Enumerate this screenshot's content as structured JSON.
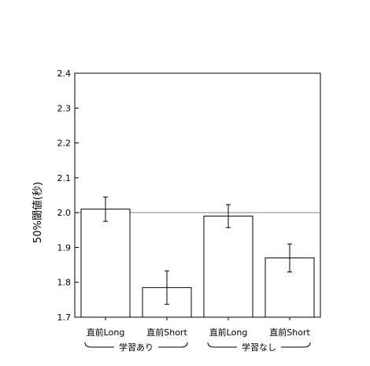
{
  "chart_data": {
    "type": "bar",
    "categories": [
      "直前Long",
      "直前Short",
      "直前Long",
      "直前Short"
    ],
    "values": [
      2.01,
      1.785,
      1.99,
      1.87
    ],
    "errors": [
      0.035,
      0.048,
      0.033,
      0.04
    ],
    "groups": [
      {
        "label": "学習あり",
        "categories": [
          0,
          1
        ]
      },
      {
        "label": "学習なし",
        "categories": [
          2,
          3
        ]
      }
    ],
    "ylabel": "50%閾値(秒)",
    "ylim": [
      1.7,
      2.4
    ],
    "yticks": [
      "1.7",
      "1.8",
      "1.9",
      "2.0",
      "2.1",
      "2.2",
      "2.3",
      "2.4"
    ],
    "reference_line": 2.0,
    "grid": false,
    "colors": {
      "bar_fill": "#ffffff",
      "bar_stroke": "#000000",
      "reference_line": "#888888"
    }
  }
}
